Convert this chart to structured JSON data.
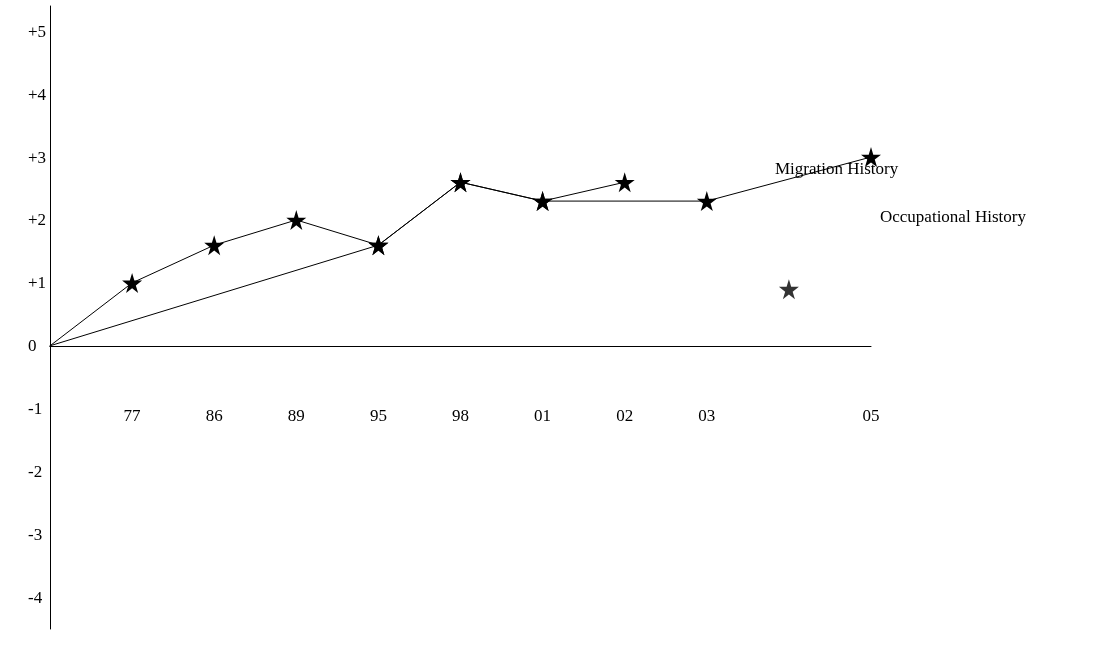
{
  "chart_data": {
    "type": "line",
    "categories": [
      null,
      "77",
      "86",
      "89",
      "95",
      "98",
      "01",
      "02",
      "03",
      null,
      "05"
    ],
    "series": [
      {
        "color": "#000000",
        "values": [
          0,
          1,
          1.6,
          2,
          1.6,
          2.6,
          2.3,
          2.6,
          null,
          null,
          null
        ]
      },
      {
        "color": "#000000",
        "values": [
          0,
          null,
          null,
          null,
          1.6,
          2.6,
          2.3,
          null,
          2.3,
          null,
          3
        ]
      },
      {
        "type": "scatter",
        "color": "#000000",
        "values": [
          null,
          null,
          null,
          null,
          null,
          null,
          null,
          null,
          null,
          0.9,
          null
        ]
      }
    ],
    "ylim": [
      -4.5,
      5.4
    ],
    "yticks": [
      {
        "value": -4,
        "label": "-4"
      },
      {
        "value": -3,
        "label": "-3"
      },
      {
        "value": -2,
        "label": "-2"
      },
      {
        "value": -1,
        "label": "-1"
      },
      {
        "value": 0,
        "label": "0"
      },
      {
        "value": 1,
        "label": "+1"
      },
      {
        "value": 2,
        "label": "+2"
      },
      {
        "value": 3,
        "label": "+3"
      },
      {
        "value": 4,
        "label": "+4"
      },
      {
        "value": 5,
        "label": "+5"
      }
    ],
    "annotations": [
      "Migration History",
      "Occupational History"
    ],
    "marker": "star",
    "line_style": "solid"
  }
}
